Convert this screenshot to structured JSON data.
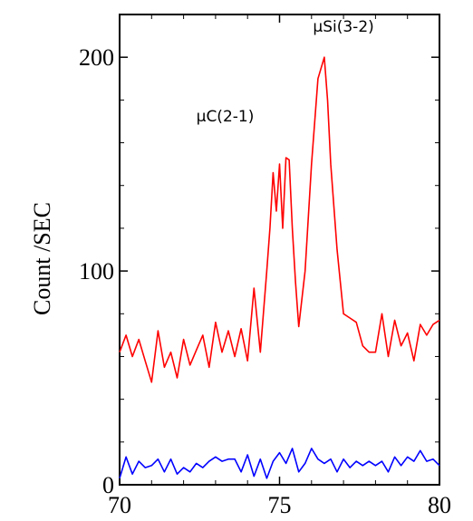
{
  "chart_data": {
    "type": "line",
    "title": "",
    "xlabel": "",
    "ylabel": "Count /SEC",
    "xlim": [
      70,
      80
    ],
    "ylim": [
      0,
      220
    ],
    "x_ticks": [
      70,
      75,
      80
    ],
    "y_ticks": [
      0,
      100,
      200
    ],
    "grid": false,
    "legend": "none",
    "annotations": [
      {
        "text": "μC(2-1)",
        "x": 73.3,
        "y": 170
      },
      {
        "text": "μSi(3-2)",
        "x": 77.0,
        "y": 212
      }
    ],
    "series": [
      {
        "color": "#ff0000",
        "x": [
          70.0,
          70.2,
          70.4,
          70.6,
          70.8,
          71.0,
          71.2,
          71.4,
          71.6,
          71.8,
          72.0,
          72.2,
          72.4,
          72.6,
          72.8,
          73.0,
          73.2,
          73.4,
          73.6,
          73.8,
          74.0,
          74.2,
          74.4,
          74.6,
          74.7,
          74.8,
          74.9,
          75.0,
          75.1,
          75.2,
          75.3,
          75.4,
          75.5,
          75.6,
          75.8,
          76.0,
          76.2,
          76.4,
          76.5,
          76.6,
          76.8,
          77.0,
          77.2,
          77.4,
          77.6,
          77.8,
          78.0,
          78.2,
          78.4,
          78.6,
          78.8,
          79.0,
          79.2,
          79.4,
          79.6,
          79.8,
          80.0
        ],
        "values": [
          62,
          70,
          60,
          68,
          58,
          48,
          72,
          55,
          62,
          50,
          68,
          56,
          63,
          70,
          55,
          76,
          62,
          72,
          60,
          73,
          58,
          92,
          62,
          100,
          120,
          146,
          128,
          150,
          120,
          153,
          152,
          120,
          95,
          74,
          100,
          150,
          190,
          200,
          180,
          150,
          110,
          80,
          78,
          76,
          65,
          62,
          62,
          80,
          60,
          77,
          65,
          71,
          58,
          75,
          70,
          75,
          77
        ]
      },
      {
        "color": "#0000ff",
        "x": [
          70.0,
          70.2,
          70.4,
          70.6,
          70.8,
          71.0,
          71.2,
          71.4,
          71.6,
          71.8,
          72.0,
          72.2,
          72.4,
          72.6,
          72.8,
          73.0,
          73.2,
          73.4,
          73.6,
          73.8,
          74.0,
          74.2,
          74.4,
          74.6,
          74.8,
          75.0,
          75.2,
          75.4,
          75.6,
          75.8,
          76.0,
          76.2,
          76.4,
          76.6,
          76.8,
          77.0,
          77.2,
          77.4,
          77.6,
          77.8,
          78.0,
          78.2,
          78.4,
          78.6,
          78.8,
          79.0,
          79.2,
          79.4,
          79.6,
          79.8,
          80.0
        ],
        "values": [
          3,
          13,
          5,
          11,
          8,
          9,
          12,
          6,
          12,
          5,
          8,
          6,
          10,
          8,
          11,
          13,
          11,
          12,
          12,
          6,
          14,
          4,
          12,
          3,
          11,
          15,
          10,
          17,
          6,
          10,
          17,
          12,
          10,
          12,
          6,
          12,
          8,
          11,
          9,
          11,
          9,
          11,
          6,
          13,
          9,
          13,
          11,
          16,
          11,
          12,
          9
        ]
      }
    ]
  }
}
